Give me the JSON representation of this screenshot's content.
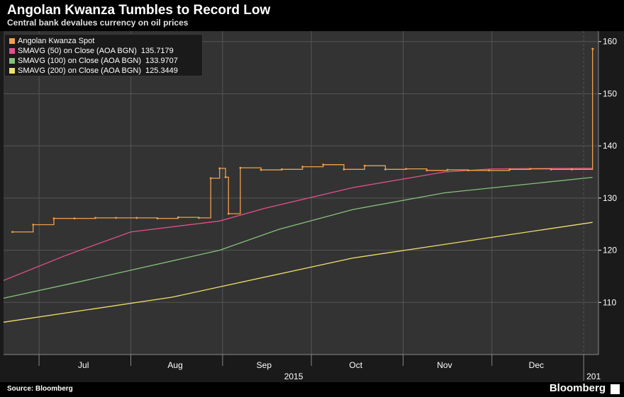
{
  "header": {
    "title": "Angolan Kwanza Tumbles to Record Low",
    "subtitle": "Central bank devalues currency on oil prices"
  },
  "footer": {
    "source": "Source: Bloomberg",
    "brand": "Bloomberg"
  },
  "colors": {
    "background": "#333333",
    "spot": "#f0a04b",
    "sma50": "#e0508a",
    "sma100": "#86c17a",
    "sma200": "#f0e06a",
    "grid": "#555555",
    "text": "#ffffff"
  },
  "legend": [
    {
      "label": "Angolan Kwanza Spot",
      "value": "",
      "color": "#f0a04b"
    },
    {
      "label": "SMAVG (50) on Close (AOA BGN)",
      "value": "135.7179",
      "color": "#e0508a"
    },
    {
      "label": "SMAVG (100) on Close (AOA BGN)",
      "value": "133.9707",
      "color": "#86c17a"
    },
    {
      "label": "SMAVG (200) on Close (AOA BGN)",
      "value": "125.3449",
      "color": "#f0e06a"
    }
  ],
  "chart_data": {
    "type": "line",
    "title": "Angolan Kwanza Tumbles to Record Low",
    "subtitle": "Central bank devalues currency on oil prices",
    "ylim": [
      100,
      162
    ],
    "y_ticks": [
      110,
      120,
      130,
      140,
      150,
      160
    ],
    "y_axis_position": "right",
    "x_month_labels": [
      "Jul",
      "Aug",
      "Sep",
      "Oct",
      "Nov",
      "Dec"
    ],
    "x_year_labels": [
      "2015",
      "201"
    ],
    "grid": true,
    "legend_position": "top-left",
    "series": [
      {
        "name": "Angolan Kwanza Spot",
        "style": "steps",
        "x": [
          "2015-06-22",
          "2015-06-29",
          "2015-07-06",
          "2015-07-13",
          "2015-07-20",
          "2015-07-27",
          "2015-08-03",
          "2015-08-10",
          "2015-08-17",
          "2015-08-24",
          "2015-08-28",
          "2015-08-31",
          "2015-09-02",
          "2015-09-03",
          "2015-09-07",
          "2015-09-14",
          "2015-09-21",
          "2015-09-28",
          "2015-10-05",
          "2015-10-12",
          "2015-10-19",
          "2015-10-26",
          "2015-11-02",
          "2015-11-09",
          "2015-11-16",
          "2015-11-23",
          "2015-11-30",
          "2015-12-07",
          "2015-12-14",
          "2015-12-21",
          "2015-12-28",
          "2016-01-04"
        ],
        "values": [
          123.5,
          124.9,
          126.1,
          126.1,
          126.2,
          126.2,
          126.2,
          126.1,
          126.3,
          126.2,
          133.8,
          135.7,
          134.0,
          127.0,
          135.8,
          135.4,
          135.5,
          136.0,
          136.4,
          135.5,
          136.2,
          135.5,
          135.6,
          135.3,
          135.4,
          135.3,
          135.3,
          135.5,
          135.6,
          135.5,
          135.5,
          158.6
        ]
      },
      {
        "name": "SMAVG (50) on Close (AOA BGN)",
        "x": [
          "2015-06-19",
          "2015-07-10",
          "2015-08-01",
          "2015-08-31",
          "2015-09-15",
          "2015-10-15",
          "2015-11-15",
          "2015-12-01",
          "2016-01-04"
        ],
        "values": [
          114.2,
          119.0,
          123.5,
          125.6,
          128.0,
          132.0,
          135.0,
          135.6,
          135.7179
        ]
      },
      {
        "name": "SMAVG (100) on Close (AOA BGN)",
        "x": [
          "2015-06-19",
          "2015-07-15",
          "2015-08-31",
          "2015-09-20",
          "2015-10-15",
          "2015-11-15",
          "2016-01-04"
        ],
        "values": [
          110.8,
          114.0,
          120.0,
          124.0,
          127.8,
          131.0,
          133.9707
        ]
      },
      {
        "name": "SMAVG (200) on Close (AOA BGN)",
        "x": [
          "2015-06-19",
          "2015-08-15",
          "2015-10-15",
          "2016-01-04"
        ],
        "values": [
          106.2,
          111.0,
          118.5,
          125.3449
        ]
      }
    ]
  }
}
